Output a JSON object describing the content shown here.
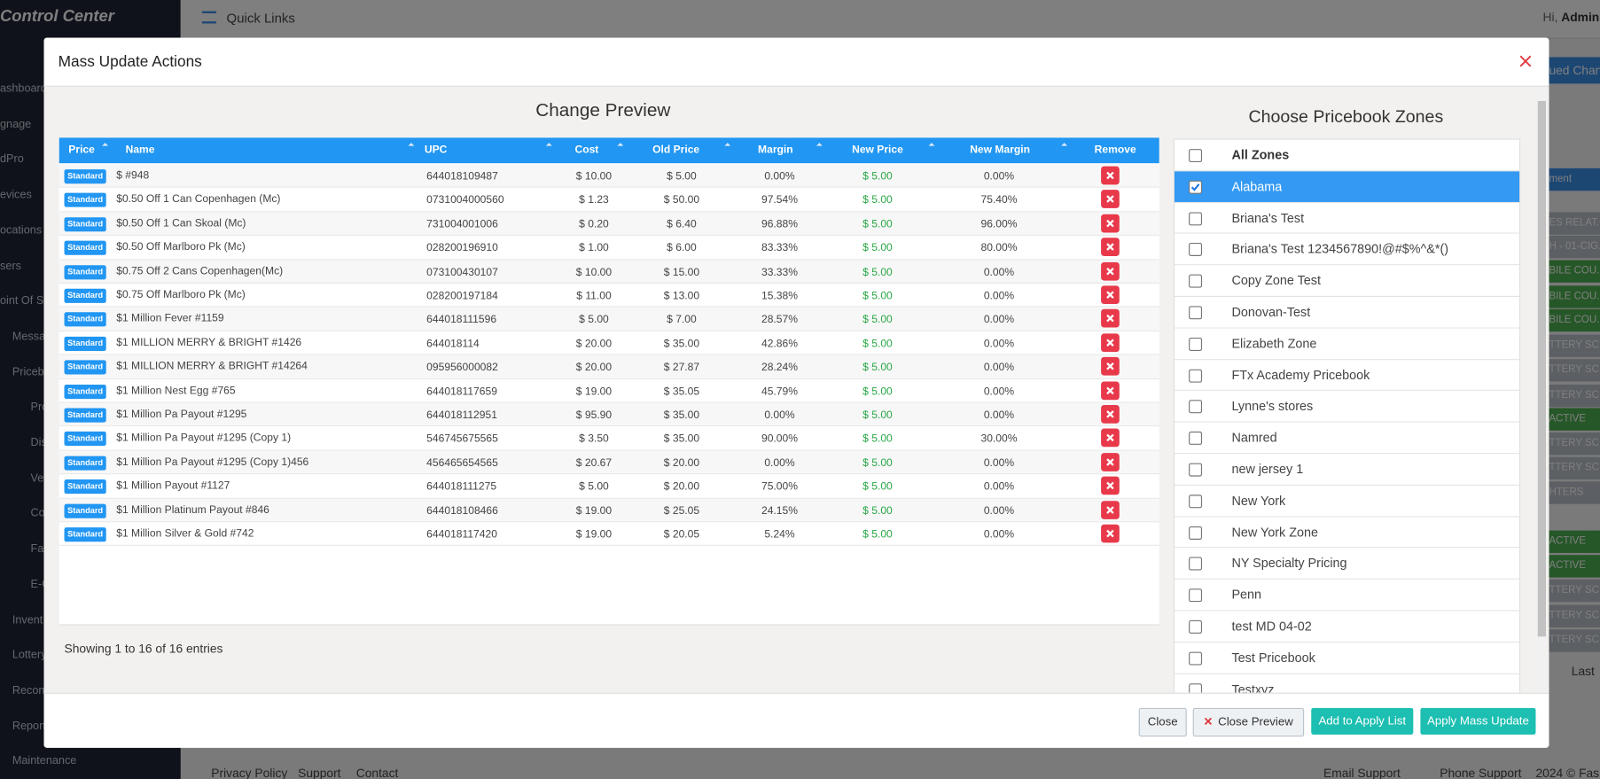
{
  "background": {
    "brand": "Control Center",
    "quick_links": "Quick Links",
    "greeting": "Hi, ",
    "user": "Admin",
    "tab": "ued Chang",
    "sidebar": [
      "ashboard",
      "gnage",
      "dPro",
      "evices",
      "ocations",
      "sers",
      "oint Of Sal",
      "Messag",
      "Pricebo",
      "Pro",
      "Dis",
      "Ve",
      "Co",
      "Fal",
      "E-C",
      "Invent",
      "Lottery",
      "Recon",
      "Report",
      "Maintenance"
    ],
    "grid_fragments": [
      "ment",
      "ES RELAT...",
      "H - 01-CIG...",
      "BILE COU...",
      "BILE COU...",
      "BILE COU...",
      "TTERY SC...",
      "TTERY SC...",
      "TTERY SC...",
      "ACTIVE",
      "TTERY SC...",
      "TTERY SC...",
      "HTERS",
      "ACTIVE",
      "ACTIVE",
      "TTERY SC...",
      "TTERY SC...",
      "TTERY SC..."
    ],
    "pager": "Last",
    "footer_links": [
      "Privacy Policy",
      "Support",
      "Contact"
    ],
    "email_support": "Email Support",
    "phone_support": "Phone Support",
    "copyright": "2024 © Fas"
  },
  "modal": {
    "title": "Mass Update Actions",
    "preview": {
      "heading": "Change Preview",
      "columns": [
        "Price",
        "Name",
        "UPC",
        "Cost",
        "Old Price",
        "Margin",
        "New Price",
        "New Margin",
        "Remove"
      ],
      "rows": [
        {
          "price": "Standard",
          "name": "$ #948",
          "upc": "644018109487",
          "cost": "$ 10.00",
          "old_price": "$ 5.00",
          "margin": "0.00%",
          "new_price": "$ 5.00",
          "new_margin": "0.00%"
        },
        {
          "price": "Standard",
          "name": "$0.50 Off 1 Can Copenhagen (Mc)",
          "upc": "0731004000560",
          "cost": "$ 1.23",
          "old_price": "$ 50.00",
          "margin": "97.54%",
          "new_price": "$ 5.00",
          "new_margin": "75.40%"
        },
        {
          "price": "Standard",
          "name": "$0.50 Off 1 Can Skoal (Mc)",
          "upc": "731004001006",
          "cost": "$ 0.20",
          "old_price": "$ 6.40",
          "margin": "96.88%",
          "new_price": "$ 5.00",
          "new_margin": "96.00%"
        },
        {
          "price": "Standard",
          "name": "$0.50 Off Marlboro Pk (Mc)",
          "upc": "028200196910",
          "cost": "$ 1.00",
          "old_price": "$ 6.00",
          "margin": "83.33%",
          "new_price": "$ 5.00",
          "new_margin": "80.00%"
        },
        {
          "price": "Standard",
          "name": "$0.75 Off 2 Cans Copenhagen(Mc)",
          "upc": "073100430107",
          "cost": "$ 10.00",
          "old_price": "$ 15.00",
          "margin": "33.33%",
          "new_price": "$ 5.00",
          "new_margin": "0.00%"
        },
        {
          "price": "Standard",
          "name": "$0.75 Off Marlboro Pk (Mc)",
          "upc": "028200197184",
          "cost": "$ 11.00",
          "old_price": "$ 13.00",
          "margin": "15.38%",
          "new_price": "$ 5.00",
          "new_margin": "0.00%"
        },
        {
          "price": "Standard",
          "name": "$1 Million Fever #1159",
          "upc": "644018111596",
          "cost": "$ 5.00",
          "old_price": "$ 7.00",
          "margin": "28.57%",
          "new_price": "$ 5.00",
          "new_margin": "0.00%"
        },
        {
          "price": "Standard",
          "name": "$1 MILLION MERRY & BRIGHT #1426",
          "upc": "644018114",
          "cost": "$ 20.00",
          "old_price": "$ 35.00",
          "margin": "42.86%",
          "new_price": "$ 5.00",
          "new_margin": "0.00%"
        },
        {
          "price": "Standard",
          "name": "$1 MILLION MERRY & BRIGHT #14264",
          "upc": "095956000082",
          "cost": "$ 20.00",
          "old_price": "$ 27.87",
          "margin": "28.24%",
          "new_price": "$ 5.00",
          "new_margin": "0.00%"
        },
        {
          "price": "Standard",
          "name": "$1 Million Nest Egg #765",
          "upc": "644018117659",
          "cost": "$ 19.00",
          "old_price": "$ 35.05",
          "margin": "45.79%",
          "new_price": "$ 5.00",
          "new_margin": "0.00%"
        },
        {
          "price": "Standard",
          "name": "$1 Million Pa Payout #1295",
          "upc": "644018112951",
          "cost": "$ 95.90",
          "old_price": "$ 35.00",
          "margin": "0.00%",
          "new_price": "$ 5.00",
          "new_margin": "0.00%"
        },
        {
          "price": "Standard",
          "name": "$1 Million Pa Payout #1295 (Copy 1)",
          "upc": "546745675565",
          "cost": "$ 3.50",
          "old_price": "$ 35.00",
          "margin": "90.00%",
          "new_price": "$ 5.00",
          "new_margin": "30.00%"
        },
        {
          "price": "Standard",
          "name": "$1 Million Pa Payout #1295 (Copy 1)456",
          "upc": "456465654565",
          "cost": "$ 20.67",
          "old_price": "$ 20.00",
          "margin": "0.00%",
          "new_price": "$ 5.00",
          "new_margin": "0.00%"
        },
        {
          "price": "Standard",
          "name": "$1 Million Payout #1127",
          "upc": "644018111275",
          "cost": "$ 5.00",
          "old_price": "$ 20.00",
          "margin": "75.00%",
          "new_price": "$ 5.00",
          "new_margin": "0.00%"
        },
        {
          "price": "Standard",
          "name": "$1 Million Platinum Payout #846",
          "upc": "644018108466",
          "cost": "$ 19.00",
          "old_price": "$ 25.05",
          "margin": "24.15%",
          "new_price": "$ 5.00",
          "new_margin": "0.00%"
        },
        {
          "price": "Standard",
          "name": "$1 Million Silver & Gold #742",
          "upc": "644018117420",
          "cost": "$ 19.00",
          "old_price": "$ 20.05",
          "margin": "5.24%",
          "new_price": "$ 5.00",
          "new_margin": "0.00%"
        }
      ],
      "info": "Showing 1 to 16 of 16 entries"
    },
    "zones": {
      "heading": "Choose Pricebook Zones",
      "items": [
        {
          "label": "All Zones",
          "checked": false
        },
        {
          "label": "Alabama",
          "checked": true
        },
        {
          "label": "Briana's Test",
          "checked": false
        },
        {
          "label": "Briana's Test 1234567890!@#$%^&*()",
          "checked": false
        },
        {
          "label": "Copy Zone Test",
          "checked": false
        },
        {
          "label": "Donovan-Test",
          "checked": false
        },
        {
          "label": "Elizabeth Zone",
          "checked": false
        },
        {
          "label": "FTx Academy Pricebook",
          "checked": false
        },
        {
          "label": "Lynne's stores",
          "checked": false
        },
        {
          "label": "Namred",
          "checked": false
        },
        {
          "label": "new jersey 1",
          "checked": false
        },
        {
          "label": "New York",
          "checked": false
        },
        {
          "label": "New York Zone",
          "checked": false
        },
        {
          "label": "NY Specialty Pricing",
          "checked": false
        },
        {
          "label": "Penn",
          "checked": false
        },
        {
          "label": "test MD 04-02",
          "checked": false
        },
        {
          "label": "Test Pricebook",
          "checked": false
        },
        {
          "label": "Testxyz",
          "checked": false
        }
      ]
    },
    "buttons": {
      "close": "Close",
      "close_preview": "Close Preview",
      "add": "Add to Apply List",
      "apply": "Apply Mass Update"
    }
  }
}
